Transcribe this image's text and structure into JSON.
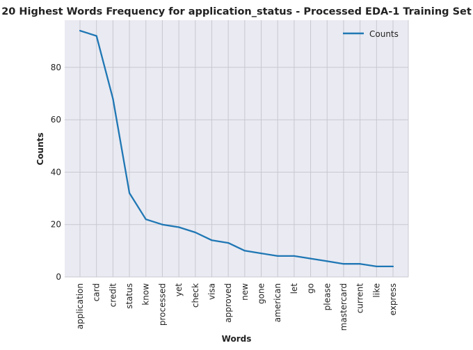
{
  "chart_data": {
    "type": "line",
    "title": "20 Highest Words Frequency for application_status - Processed EDA-1 Training Set",
    "xlabel": "Words",
    "ylabel": "Counts",
    "categories": [
      "application",
      "card",
      "credit",
      "status",
      "know",
      "processed",
      "yet",
      "check",
      "visa",
      "approved",
      "new",
      "gone",
      "american",
      "let",
      "go",
      "please",
      "mastercard",
      "current",
      "like",
      "express"
    ],
    "series": [
      {
        "name": "Counts",
        "values": [
          94,
          92,
          68,
          32,
          22,
          20,
          19,
          17,
          14,
          13,
          10,
          9,
          8,
          8,
          7,
          6,
          5,
          5,
          4,
          4
        ]
      }
    ],
    "ylim": [
      0,
      98
    ],
    "yticks": [
      0,
      20,
      40,
      60,
      80
    ],
    "grid": true,
    "legend_position": "top-right",
    "colors": {
      "background": "#eaeaf2",
      "line": "#1f77b4",
      "grid": "#c8c8d0"
    }
  }
}
